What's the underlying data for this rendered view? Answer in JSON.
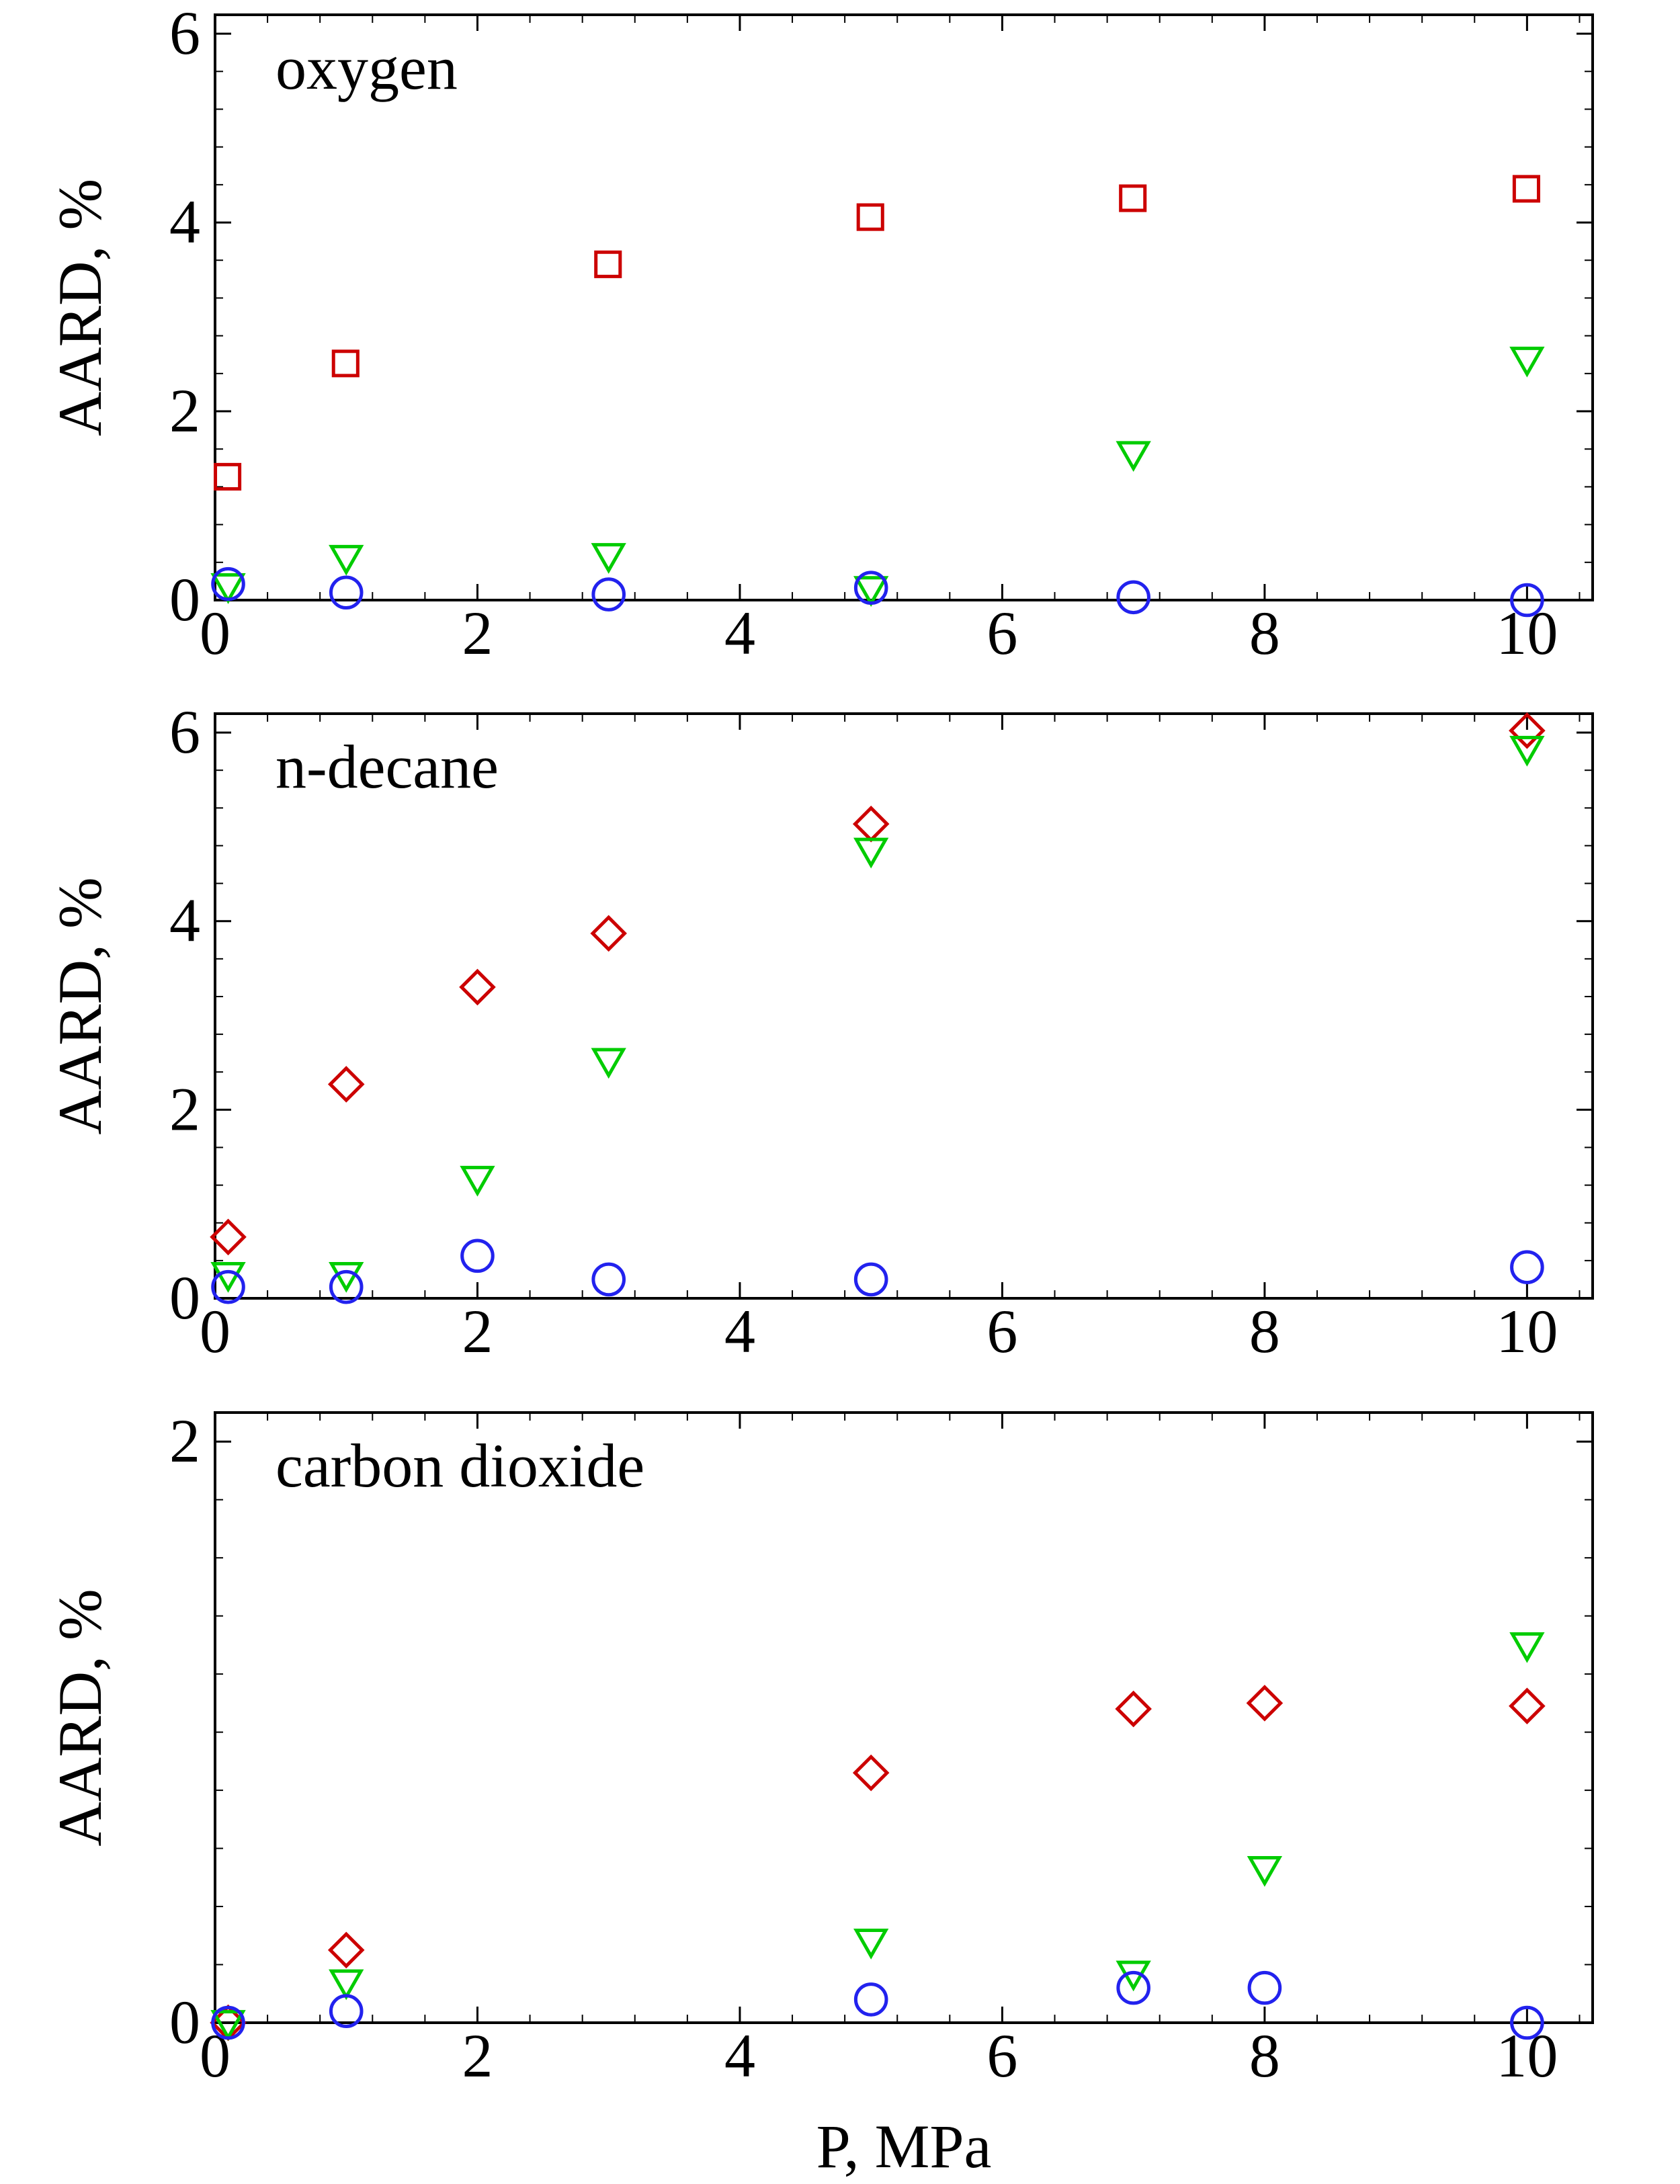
{
  "chart_data": [
    {
      "type": "scatter",
      "panel_label": "oxygen",
      "ylabel": "AARD, %",
      "xlabel": "",
      "xlim": [
        0,
        10.5
      ],
      "ylim": [
        0,
        6.2
      ],
      "xticks": [
        "0",
        "2",
        "4",
        "6",
        "8",
        "10"
      ],
      "yticks": [
        "0",
        "2",
        "4",
        "6"
      ],
      "series": [
        {
          "marker": "square",
          "color": "#cc0000",
          "x": [
            0.1,
            1,
            3,
            5,
            7,
            10
          ],
          "y": [
            1.3,
            2.5,
            3.55,
            4.05,
            4.25,
            4.35
          ]
        },
        {
          "marker": "triangle-down",
          "color": "#00cc00",
          "x": [
            0.1,
            1,
            3,
            5,
            7,
            10
          ],
          "y": [
            0.15,
            0.45,
            0.47,
            0.12,
            1.55,
            2.55
          ]
        },
        {
          "marker": "circle",
          "color": "#2222ee",
          "x": [
            0.1,
            1,
            3,
            5,
            7,
            10
          ],
          "y": [
            0.17,
            0.08,
            0.06,
            0.13,
            0.03,
            0.0
          ]
        }
      ]
    },
    {
      "type": "scatter",
      "panel_label": "n-decane",
      "ylabel": "AARD, %",
      "xlabel": "",
      "xlim": [
        0,
        10.5
      ],
      "ylim": [
        0,
        6.2
      ],
      "xticks": [
        "0",
        "2",
        "4",
        "6",
        "8",
        "10"
      ],
      "yticks": [
        "0",
        "2",
        "4",
        "6"
      ],
      "series": [
        {
          "marker": "diamond",
          "color": "#cc0000",
          "x": [
            0.1,
            1,
            2,
            3,
            5,
            10
          ],
          "y": [
            0.65,
            2.27,
            3.3,
            3.87,
            5.03,
            6.02
          ]
        },
        {
          "marker": "triangle-down",
          "color": "#00cc00",
          "x": [
            0.1,
            1,
            2,
            3,
            5,
            10
          ],
          "y": [
            0.25,
            0.25,
            1.27,
            2.52,
            4.75,
            5.83
          ]
        },
        {
          "marker": "circle",
          "color": "#2222ee",
          "x": [
            0.1,
            1,
            2,
            3,
            5,
            10
          ],
          "y": [
            0.12,
            0.12,
            0.45,
            0.2,
            0.2,
            0.33
          ]
        }
      ]
    },
    {
      "type": "scatter",
      "panel_label": "carbon dioxide",
      "ylabel": "AARD, %",
      "xlabel": "P, MPa",
      "xlim": [
        0,
        10.5
      ],
      "ylim": [
        0,
        2.1
      ],
      "xticks": [
        "0",
        "2",
        "4",
        "6",
        "8",
        "10"
      ],
      "yticks": [
        "0",
        "2"
      ],
      "series": [
        {
          "marker": "diamond",
          "color": "#cc0000",
          "x": [
            0.1,
            1,
            5,
            7,
            8,
            10
          ],
          "y": [
            0.0,
            0.25,
            0.86,
            1.08,
            1.1,
            1.09
          ]
        },
        {
          "marker": "triangle-down",
          "color": "#00cc00",
          "x": [
            0.1,
            1,
            5,
            7,
            8,
            10
          ],
          "y": [
            0.0,
            0.14,
            0.28,
            0.17,
            0.53,
            1.3
          ]
        },
        {
          "marker": "circle",
          "color": "#2222ee",
          "x": [
            0.1,
            1,
            5,
            7,
            8,
            10
          ],
          "y": [
            0.0,
            0.04,
            0.08,
            0.12,
            0.12,
            0.0
          ]
        }
      ]
    }
  ]
}
